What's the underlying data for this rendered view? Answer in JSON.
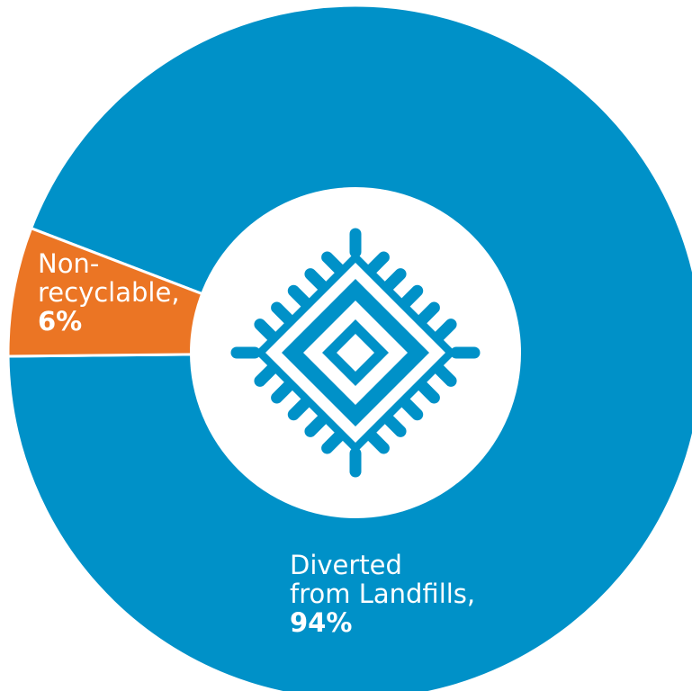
{
  "chart_data": {
    "type": "pie",
    "donut": true,
    "slices": [
      {
        "label_lines": [
          "Diverted",
          "from Landfills,"
        ],
        "value_text": "94%",
        "value": 94,
        "color": "#0091C8"
      },
      {
        "label_lines": [
          "Non-",
          "recyclable,"
        ],
        "value_text": "6%",
        "value": 6,
        "color": "#EB7524"
      }
    ],
    "center_icon": "woven-rug-icon",
    "center_color": "#FFFFFF",
    "separator_color": "#FFFFFF"
  }
}
